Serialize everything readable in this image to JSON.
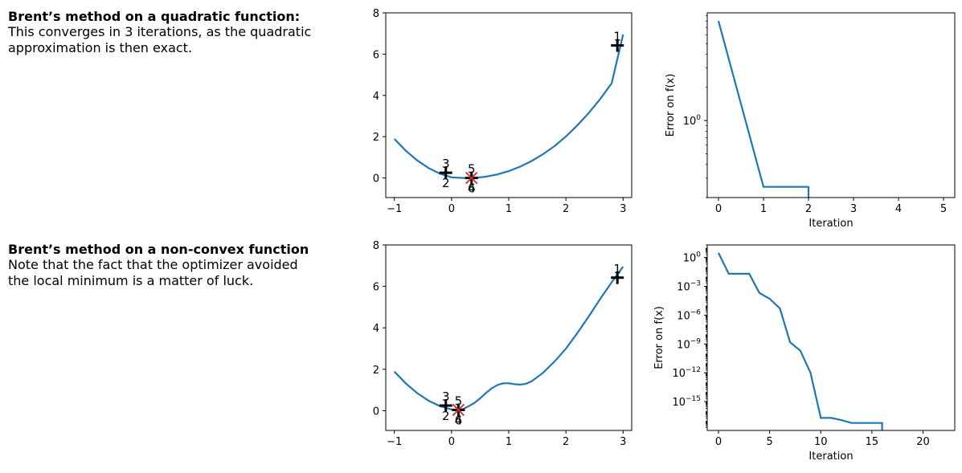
{
  "panels": [
    {
      "title": "Brent’s method on a quadratic function:",
      "description": "This converges in 3 iterations, as the quadratic\napproximation is then exact."
    },
    {
      "title": "Brent’s method on a non-convex function",
      "description": "Note that the fact that the optimizer avoided\nthe local minimum is a matter of luck."
    }
  ],
  "colors": {
    "line": "#1f77b4",
    "marker": "#000000",
    "final_marker": "#d62728"
  },
  "chart_data": [
    {
      "type": "line",
      "role": "function",
      "title": "",
      "xlabel": "",
      "ylabel": "",
      "xlim": [
        -1.15,
        3.15
      ],
      "ylim": [
        -0.95,
        8
      ],
      "xticks": [
        -1,
        0,
        1,
        2,
        3
      ],
      "yticks": [
        0,
        2,
        4,
        6,
        8
      ],
      "x": [
        -1,
        -0.8,
        -0.6,
        -0.4,
        -0.2,
        0,
        0.2,
        0.4,
        0.6,
        0.8,
        1,
        1.2,
        1.4,
        1.6,
        1.8,
        2,
        2.2,
        2.4,
        2.6,
        2.8,
        3
      ],
      "y": [
        1.89,
        1.32,
        0.85,
        0.48,
        0.2,
        0.03,
        0.0,
        0.0,
        0.06,
        0.17,
        0.33,
        0.55,
        0.82,
        1.15,
        1.54,
        2.01,
        2.55,
        3.15,
        3.83,
        4.59,
        6.95
      ],
      "iterates": [
        {
          "label": "1",
          "x": 2.9,
          "y": 6.42,
          "label_position": "above"
        },
        {
          "label": "2",
          "x": -0.1,
          "y": 0.25,
          "label_position": "below"
        },
        {
          "label": "3",
          "x": -0.1,
          "y": 0.25,
          "label_position": "above"
        },
        {
          "label": "4",
          "x": 0.35,
          "y": 0.0,
          "label_position": "below"
        },
        {
          "label": "5",
          "x": 0.35,
          "y": 0.0,
          "label_position": "above"
        },
        {
          "label": "6",
          "x": 0.35,
          "y": 0.0,
          "label_position": "below"
        }
      ],
      "final": {
        "x": 0.35,
        "y": 0.0
      }
    },
    {
      "type": "line",
      "role": "error",
      "title": "",
      "xlabel": "Iteration",
      "ylabel": "Error on f(x)",
      "yscale": "log",
      "xlim": [
        -0.25,
        5.25
      ],
      "ylim": [
        0.2,
        9.5
      ],
      "xticks": [
        0,
        1,
        2,
        3,
        4,
        5
      ],
      "yticks": [
        {
          "value": 1,
          "base": "10",
          "exp": "0"
        }
      ],
      "x": [
        0,
        1,
        2,
        2
      ],
      "y": [
        8.0,
        0.25,
        0.25,
        0.2
      ]
    },
    {
      "type": "line",
      "role": "function",
      "title": "",
      "xlabel": "",
      "ylabel": "",
      "xlim": [
        -1.15,
        3.15
      ],
      "ylim": [
        -0.95,
        8
      ],
      "xticks": [
        -1,
        0,
        1,
        2,
        3
      ],
      "yticks": [
        0,
        2,
        4,
        6,
        8
      ],
      "x": [
        -1,
        -0.8,
        -0.6,
        -0.4,
        -0.2,
        0,
        0.1,
        0.2,
        0.3,
        0.4,
        0.5,
        0.6,
        0.7,
        0.8,
        0.9,
        1.0,
        1.1,
        1.2,
        1.3,
        1.4,
        1.6,
        1.8,
        2.0,
        2.2,
        2.4,
        2.6,
        2.8,
        3.0
      ],
      "y": [
        1.89,
        1.32,
        0.85,
        0.48,
        0.22,
        0.06,
        0.04,
        0.08,
        0.22,
        0.38,
        0.6,
        0.85,
        1.08,
        1.24,
        1.32,
        1.33,
        1.28,
        1.26,
        1.3,
        1.42,
        1.83,
        2.37,
        3.0,
        3.75,
        4.55,
        5.4,
        6.2,
        6.95
      ],
      "iterates": [
        {
          "label": "1",
          "x": 2.9,
          "y": 6.42,
          "label_position": "above"
        },
        {
          "label": "2",
          "x": -0.1,
          "y": 0.25,
          "label_position": "below"
        },
        {
          "label": "3",
          "x": -0.1,
          "y": 0.25,
          "label_position": "above"
        },
        {
          "label": "4",
          "x": 0.12,
          "y": 0.04,
          "label_position": "below"
        },
        {
          "label": "5",
          "x": 0.12,
          "y": 0.04,
          "label_position": "above"
        },
        {
          "label": "6",
          "x": 0.12,
          "y": 0.04,
          "label_position": "below"
        }
      ],
      "final": {
        "x": 0.12,
        "y": 0.04
      }
    },
    {
      "type": "line",
      "role": "error",
      "title": "",
      "xlabel": "Iteration",
      "ylabel": "Error on f(x)",
      "yscale": "log",
      "xlim": [
        -1.1,
        23.1
      ],
      "ylim": [
        1e-18,
        20
      ],
      "xticks": [
        0,
        5,
        10,
        15,
        20
      ],
      "yticks": [
        {
          "value": 1,
          "base": "10",
          "exp": "0"
        },
        {
          "value": 0.001,
          "base": "10",
          "exp": "−3"
        },
        {
          "value": 1e-06,
          "base": "10",
          "exp": "−6"
        },
        {
          "value": 1e-09,
          "base": "10",
          "exp": "−9"
        },
        {
          "value": 1e-12,
          "base": "10",
          "exp": "−12"
        },
        {
          "value": 1e-15,
          "base": "10",
          "exp": "−15"
        }
      ],
      "x": [
        0,
        1,
        2,
        3,
        4,
        5,
        6,
        7,
        8,
        9,
        10,
        11,
        12,
        13,
        14,
        15,
        16,
        16
      ],
      "y": [
        3,
        0.02,
        0.02,
        0.02,
        0.0002,
        5e-05,
        5e-06,
        1.5e-09,
        2e-10,
        1e-12,
        2e-17,
        2e-17,
        1.2e-17,
        6e-18,
        6e-18,
        6e-18,
        6e-18,
        1e-18
      ]
    }
  ]
}
